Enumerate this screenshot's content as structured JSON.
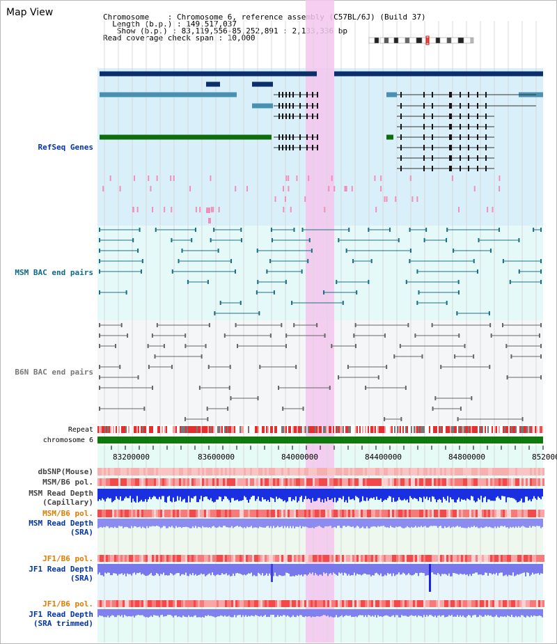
{
  "header": {
    "title": "Map View",
    "info_lines": [
      "Chromosome    : Chromosome 6, reference assembly (C57BL/6J) (Build 37)",
      "  Length (b.p.) : 149,517,037",
      "   Show (b.p.) : 83,119,556-85,252,891 : 2,133,336 bp",
      "Read coverage check span : 10,000"
    ]
  },
  "tracks": {
    "refseq": "RefSeq Genes",
    "msm_bac": "MSM BAC end pairs",
    "b6n_bac": "B6N BAC end pairs",
    "repeat": "Repeat",
    "chromosome": "chromosome 6",
    "dbsnp": "dbSNP(Mouse)",
    "msm_b6_pol_a": "MSM/B6 pol.",
    "msm_rd_cap_1": "MSM Read Depth",
    "msm_rd_cap_2": "(Capillary)",
    "msm_b6_pol_b": "MSM/B6 pol.",
    "msm_rd_sra_1": "MSM Read Depth",
    "msm_rd_sra_2": "(SRA)",
    "jf1_b6_pol_a": "JF1/B6 pol.",
    "jf1_rd_sra_1": "JF1 Read Depth",
    "jf1_rd_sra_2": "(SRA)",
    "jf1_b6_pol_b": "JF1/B6 pol.",
    "jf1_rd_trim_1": "JF1 Read Depth",
    "jf1_rd_trim_2": "(SRA trimmed)"
  },
  "axis_ticks": [
    "83200000",
    "83600000",
    "84000000",
    "84400000",
    "84800000",
    "85200000"
  ],
  "colors": {
    "refseq_bg": "#d9eff9",
    "msm_bg": "#e6f9f9",
    "b6n_bg": "#f4f6f8",
    "highlight": "#f5c6ef",
    "chromosome_bar": "#0e7a0e",
    "gene_dark": "#0b2f6b",
    "gene_mid": "#4a90b0",
    "gene_green": "#0d6e0d",
    "msm_pair": "#1a6e84",
    "b6n_pair": "#666666",
    "read_depth_dark": "#1a2fe0",
    "read_depth_light": "#8c8cf0",
    "label_blue": "#0033aa",
    "label_teal": "#0a6a88",
    "label_gray": "#777777",
    "label_orange": "#e07a00"
  }
}
